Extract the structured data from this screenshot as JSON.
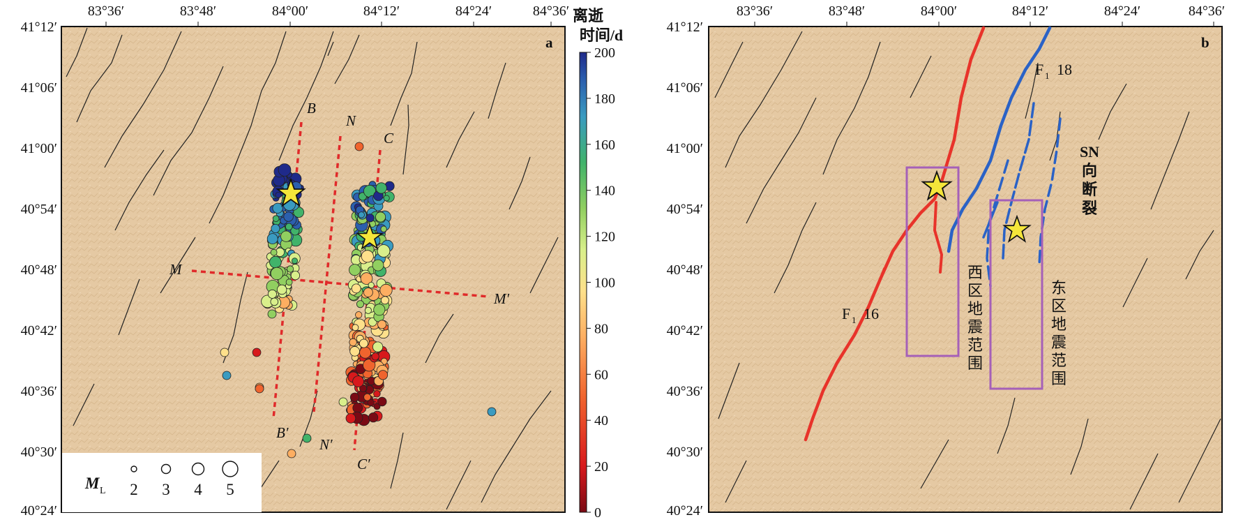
{
  "panel_a": {
    "label": "a",
    "lon_ticks": [
      "83°36′",
      "83°48′",
      "84°00′",
      "84°12′",
      "84°24′",
      "84°36′"
    ],
    "lat_ticks": [
      "41°12′",
      "41°06′",
      "41°00′",
      "40°54′",
      "40°48′",
      "40°42′",
      "40°36′",
      "40°30′",
      "40°24′"
    ],
    "profiles": [
      {
        "start": "B",
        "end": "B′"
      },
      {
        "start": "N",
        "end": "N′"
      },
      {
        "start": "C",
        "end": "C′"
      },
      {
        "start": "M",
        "end": "M′"
      }
    ],
    "colorbar": {
      "title_line1": "离逝",
      "title_line2": "时间/d",
      "ticks": [
        "0",
        "20",
        "40",
        "60",
        "80",
        "100",
        "120",
        "140",
        "160",
        "180",
        "200"
      ],
      "colors": [
        "#7a0a14",
        "#d7191c",
        "#f0642e",
        "#fdae61",
        "#fee08b",
        "#d9ef8b",
        "#91cf60",
        "#41b36a",
        "#3a9bc0",
        "#2b5fae",
        "#1f2a8a"
      ]
    },
    "magnitude_legend": {
      "label": "M",
      "subscript": "L",
      "values": [
        "2",
        "3",
        "4",
        "5"
      ]
    }
  },
  "panel_b": {
    "label": "b",
    "lon_ticks": [
      "83°36′",
      "83°48′",
      "84°00′",
      "84°12′",
      "84°24′",
      "84°36′"
    ],
    "lat_ticks": [
      "41°12′",
      "41°06′",
      "41°00′",
      "40°54′",
      "40°48′",
      "40°42′",
      "40°36′",
      "40°30′",
      "40°24′"
    ],
    "fault_f16": {
      "prefix": "F",
      "sub": "1",
      "num": "16"
    },
    "fault_f18": {
      "prefix": "F",
      "sub": "1",
      "num": "18"
    },
    "sn_label": [
      "SN",
      "向",
      "断",
      "裂"
    ],
    "west_zone": [
      "西",
      "区",
      "地",
      "震",
      "范",
      "围"
    ],
    "east_zone": [
      "东",
      "区",
      "地",
      "震",
      "范",
      "围"
    ],
    "colors": {
      "f16": "#e8332a",
      "f18": "#2a62c6",
      "zone_box": "#a560b8",
      "star": "#f5e63a"
    }
  }
}
